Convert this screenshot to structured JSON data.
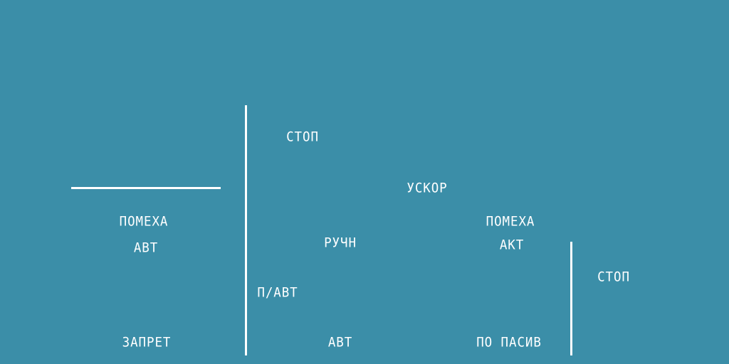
{
  "colors": {
    "background": "#3b8ea8",
    "foreground": "#ffffff"
  },
  "labels": {
    "left_interference": "ПОМЕХА",
    "left_auto": "АВТ",
    "left_prohibit": "ЗАПРЕТ",
    "top_stop": "СТОП",
    "manual": "РУЧН",
    "semi_auto": "П/АВТ",
    "bottom_auto": "АВТ",
    "accelerate": "УСКОР",
    "right_interference": "ПОМЕХА",
    "active": "АКТ",
    "passive": "ПО ПАСИВ",
    "right_stop": "СТОП"
  }
}
